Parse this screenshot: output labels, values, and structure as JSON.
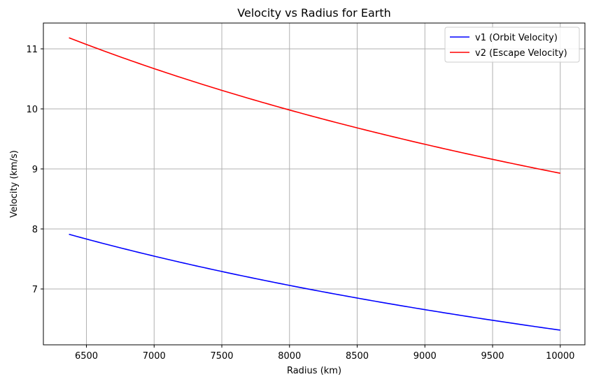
{
  "chart_data": {
    "type": "line",
    "title": "Velocity vs Radius for Earth",
    "xlabel": "Radius (km)",
    "ylabel": "Velocity (km/s)",
    "xlim": [
      6182,
      10182
    ],
    "ylim": [
      6.07,
      11.43
    ],
    "x_ticks": [
      6500,
      7000,
      7500,
      8000,
      8500,
      9000,
      9500,
      10000
    ],
    "y_ticks": [
      7,
      8,
      9,
      10,
      11
    ],
    "grid": true,
    "legend_position": "top-right",
    "series": [
      {
        "name": "v1 (Orbit Velocity)",
        "color": "#0000ff",
        "x": [
          6371,
          6500,
          7000,
          7500,
          8000,
          8500,
          9000,
          9500,
          10000
        ],
        "y": [
          7.91,
          7.83,
          7.55,
          7.29,
          7.06,
          6.85,
          6.66,
          6.48,
          6.31
        ]
      },
      {
        "name": "v2 (Escape Velocity)",
        "color": "#ff0000",
        "x": [
          6371,
          6500,
          7000,
          7500,
          8000,
          8500,
          9000,
          9500,
          10000
        ],
        "y": [
          11.19,
          11.07,
          10.67,
          10.31,
          9.98,
          9.68,
          9.41,
          9.16,
          8.93
        ]
      }
    ]
  }
}
